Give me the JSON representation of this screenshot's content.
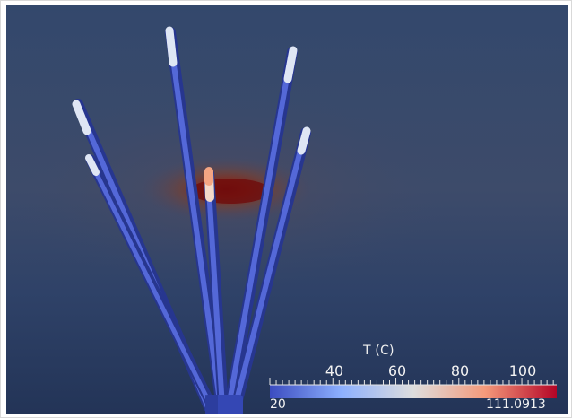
{
  "colorbar": {
    "title": "T (C)",
    "min_label": "20",
    "max_label": "111.0913",
    "min": 20,
    "max": 111.0913,
    "ticks": [
      "40",
      "60",
      "80",
      "100"
    ],
    "tick_values": [
      40,
      60,
      80,
      100
    ],
    "colormap": [
      "#3b4cc0",
      "#8db0fe",
      "#dddddd",
      "#f49a7b",
      "#b40426"
    ]
  },
  "scene": {
    "background_color": "#34476a",
    "hotspot_color": "#8b1a12",
    "rod_color": "#3b4cc0",
    "rod_count": 6
  }
}
